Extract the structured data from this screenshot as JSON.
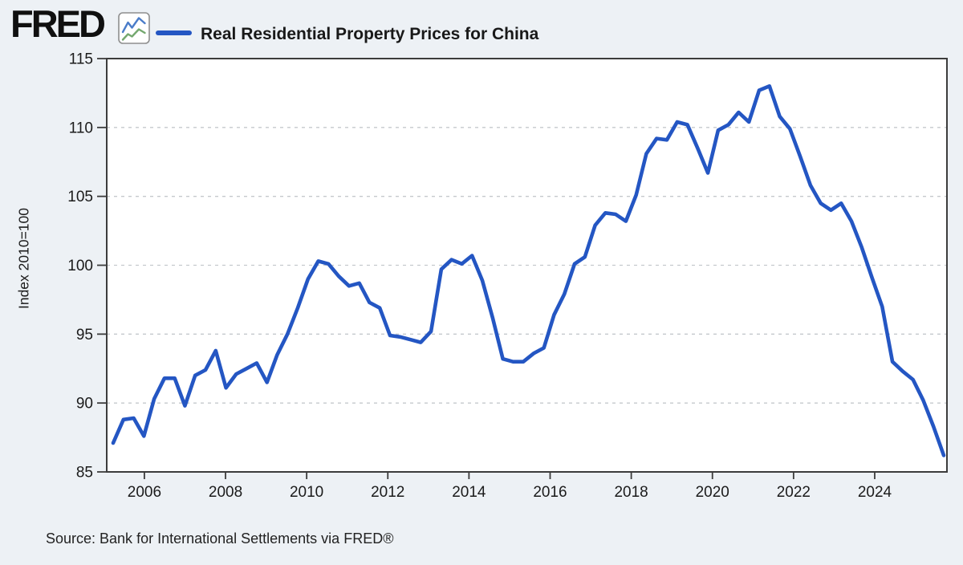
{
  "header": {
    "logo_text": "FRED",
    "logo_icon": "fred-sparkline-icon",
    "series_legend": {
      "label": "Real Residential Property Prices for China",
      "color": "#2456c3"
    }
  },
  "axes": {
    "y_title": "Index 2010=100"
  },
  "footer": {
    "source": "Source: Bank for International Settlements via FRED®"
  },
  "colors": {
    "page_bg": "#edf1f5",
    "plot_bg": "#ffffff",
    "grid": "#c5c9cd",
    "axis": "#3c3c3c",
    "text": "#1b1b1b",
    "line": "#2456c3",
    "logo_icon_blue": "#4a7cc9",
    "logo_icon_green": "#74a86f",
    "logo_icon_border": "#8e8e8e"
  },
  "chart_data": {
    "type": "line",
    "title": "Real Residential Property Prices for China",
    "xlabel": "",
    "ylabel": "Index 2010=100",
    "ylim": [
      85,
      115
    ],
    "yticks": [
      85,
      90,
      95,
      100,
      105,
      110,
      115
    ],
    "xticks": [
      2006,
      2008,
      2010,
      2012,
      2014,
      2016,
      2018,
      2020,
      2022,
      2024
    ],
    "grid": "horizontal-dashed",
    "legend_position": "top",
    "frequency": "Quarterly",
    "x_start": "2005-Q1",
    "x_end": "2025-Q2",
    "series_name": "Real Residential Property Prices for China",
    "values": [
      87.1,
      88.8,
      88.9,
      87.6,
      90.3,
      91.8,
      91.8,
      89.8,
      92.0,
      92.4,
      93.8,
      91.1,
      92.1,
      92.5,
      92.9,
      91.5,
      93.5,
      95.0,
      96.9,
      99.0,
      100.3,
      100.1,
      99.2,
      98.5,
      98.7,
      97.3,
      96.9,
      94.9,
      94.8,
      94.6,
      94.4,
      95.2,
      99.7,
      100.4,
      100.1,
      100.7,
      98.9,
      96.2,
      93.2,
      93.0,
      93.0,
      93.6,
      94.0,
      96.4,
      97.9,
      100.1,
      100.6,
      102.9,
      103.8,
      103.7,
      103.2,
      105.1,
      108.1,
      109.2,
      109.1,
      110.4,
      110.2,
      108.5,
      106.7,
      109.8,
      110.2,
      111.1,
      110.4,
      112.7,
      113.0,
      110.8,
      109.9,
      107.9,
      105.8,
      104.5,
      104.0,
      104.5,
      103.2,
      101.3,
      99.1,
      97.0,
      93.0,
      92.3,
      91.7,
      90.2,
      88.3,
      86.2
    ]
  }
}
